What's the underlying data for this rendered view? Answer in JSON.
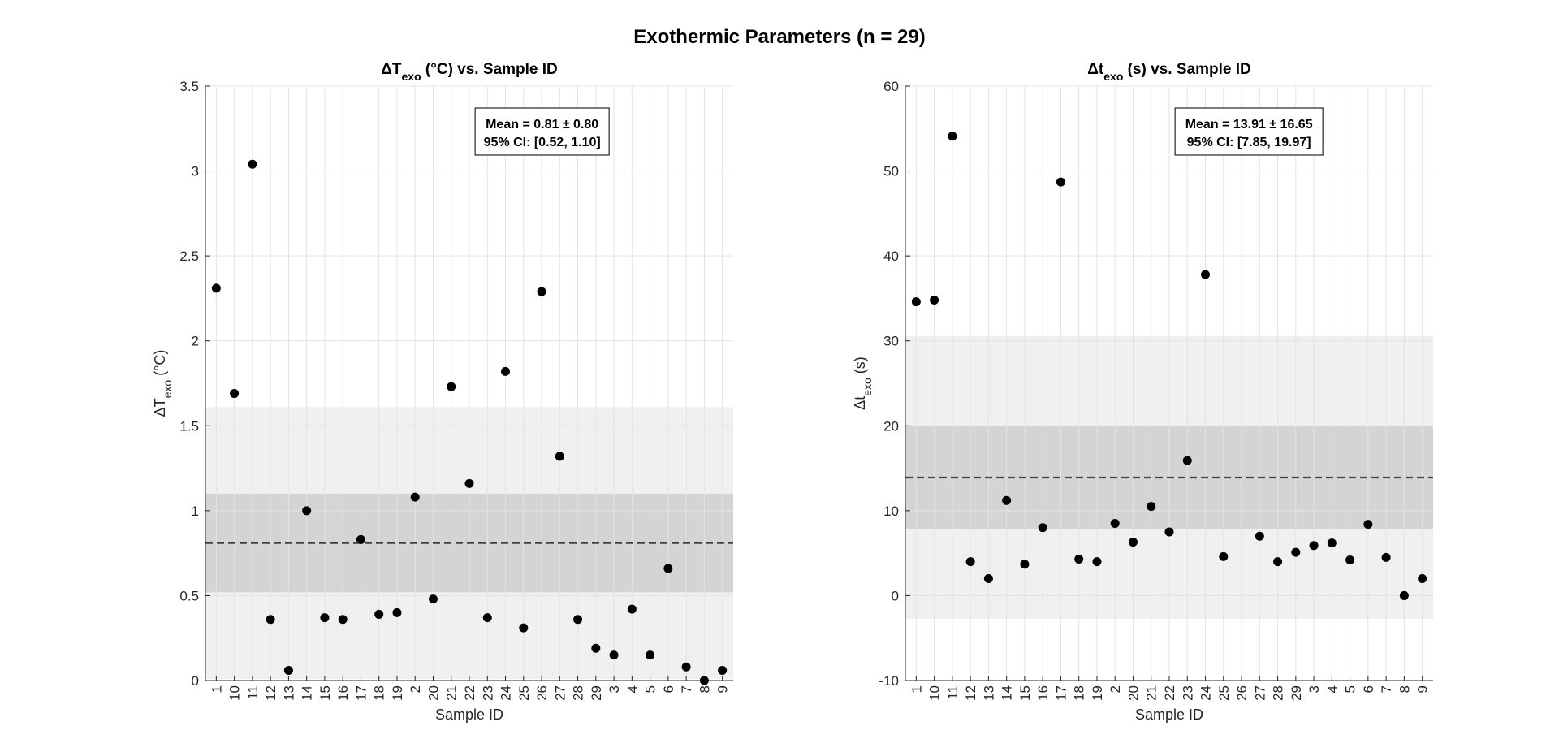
{
  "figure": {
    "suptitle": "Exothermic Parameters (n = 29)"
  },
  "chart_data": [
    {
      "type": "scatter",
      "title": "ΔT_exo (°C) vs. Sample ID",
      "xlabel": "Sample ID",
      "ylabel": "ΔT_exo (°C)",
      "ylim": [
        0,
        3.5
      ],
      "yticks": [
        "0",
        "0.5",
        "1",
        "1.5",
        "2",
        "2.5",
        "3",
        "3.5"
      ],
      "grid": true,
      "categories": [
        "1",
        "10",
        "11",
        "12",
        "13",
        "14",
        "15",
        "16",
        "17",
        "18",
        "19",
        "2",
        "20",
        "21",
        "22",
        "23",
        "24",
        "25",
        "26",
        "27",
        "28",
        "29",
        "3",
        "4",
        "5",
        "6",
        "7",
        "8",
        "9"
      ],
      "values": [
        2.31,
        1.69,
        3.04,
        0.36,
        0.06,
        1.0,
        0.37,
        0.36,
        0.83,
        0.39,
        0.4,
        1.08,
        0.48,
        1.73,
        1.16,
        0.37,
        1.82,
        0.31,
        2.29,
        1.32,
        0.36,
        0.19,
        0.15,
        0.42,
        0.15,
        0.66,
        0.08,
        0.0,
        0.06
      ],
      "mean": 0.81,
      "ci": [
        0.52,
        1.1
      ],
      "sd_band": [
        0.01,
        1.61
      ],
      "annotation": [
        "Mean = 0.81 ± 0.80",
        "95% CI: [0.52, 1.10]"
      ]
    },
    {
      "type": "scatter",
      "title": "Δt_exo (s) vs. Sample ID",
      "xlabel": "Sample ID",
      "ylabel": "Δt_exo (s)",
      "ylim": [
        -10,
        60
      ],
      "yticks": [
        "-10",
        "0",
        "10",
        "20",
        "30",
        "40",
        "50",
        "60"
      ],
      "grid": true,
      "categories": [
        "1",
        "10",
        "11",
        "12",
        "13",
        "14",
        "15",
        "16",
        "17",
        "18",
        "19",
        "2",
        "20",
        "21",
        "22",
        "23",
        "24",
        "25",
        "26",
        "27",
        "28",
        "29",
        "3",
        "4",
        "5",
        "6",
        "7",
        "8",
        "9"
      ],
      "values": [
        34.6,
        34.8,
        54.1,
        4.0,
        2.0,
        11.2,
        3.7,
        8.0,
        48.7,
        4.3,
        4.0,
        8.5,
        6.3,
        10.5,
        7.5,
        15.9,
        37.8,
        4.6,
        null,
        7.0,
        4.0,
        5.1,
        5.9,
        6.2,
        4.2,
        8.4,
        4.5,
        0.0,
        2.0
      ],
      "mean": 13.91,
      "ci": [
        7.85,
        19.97
      ],
      "sd_band": [
        -2.74,
        30.56
      ],
      "annotation": [
        "Mean = 13.91 ± 16.65",
        "95% CI: [7.85, 19.97]"
      ]
    }
  ]
}
